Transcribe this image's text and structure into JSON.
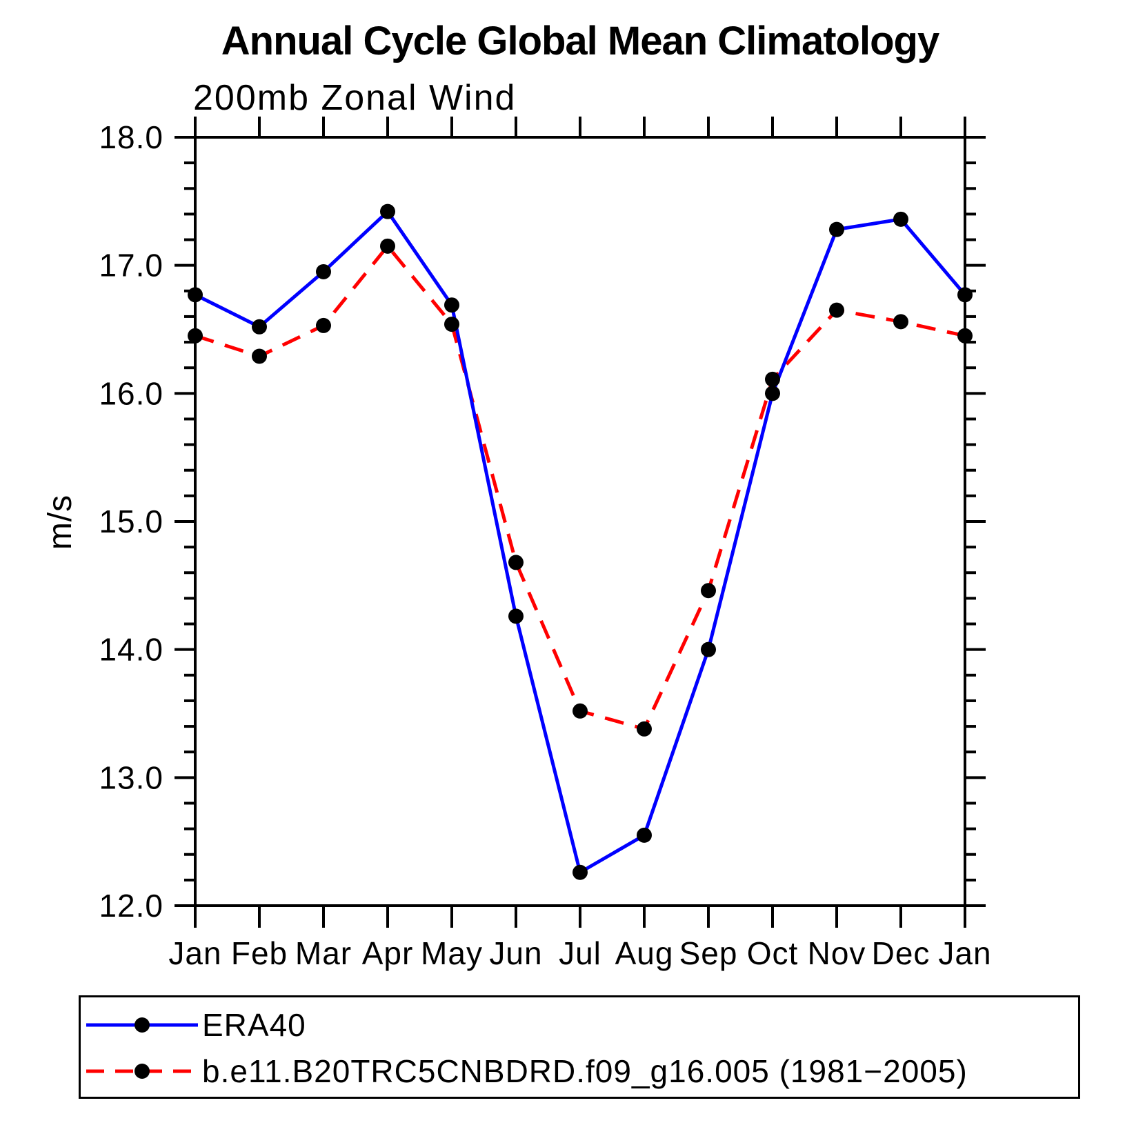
{
  "page": {
    "background_color": "#ffffff",
    "text_color": "#000000"
  },
  "chart_data": {
    "type": "line",
    "title": "Annual Cycle Global Mean Climatology",
    "subtitle": "200mb Zonal Wind",
    "ylabel": "m/s",
    "xlabel": "",
    "categories": [
      "Jan",
      "Feb",
      "Mar",
      "Apr",
      "May",
      "Jun",
      "Jul",
      "Aug",
      "Sep",
      "Oct",
      "Nov",
      "Dec",
      "Jan"
    ],
    "series": [
      {
        "name": "ERA40",
        "color": "#0000ff",
        "line_style": "solid",
        "marker": "filled-circle",
        "marker_color": "#000000",
        "values": [
          16.77,
          16.52,
          16.95,
          17.42,
          16.69,
          14.26,
          12.26,
          12.55,
          14.0,
          16.0,
          17.28,
          17.36,
          16.77
        ]
      },
      {
        "name": "b.e11.B20TRC5CNBDRD.f09_g16.005 (1981−2005)",
        "color": "#ff0000",
        "line_style": "dashed",
        "marker": "filled-circle",
        "marker_color": "#000000",
        "values": [
          16.45,
          16.29,
          16.53,
          17.15,
          16.54,
          14.68,
          13.52,
          13.38,
          14.46,
          16.11,
          16.65,
          16.56,
          16.45
        ]
      }
    ],
    "ylim": [
      12.0,
      18.0
    ],
    "ytick_major_step": 1.0,
    "ytick_minor_step": 0.2,
    "ytick_labels": [
      "18.0",
      "17.0",
      "16.0",
      "15.0",
      "14.0",
      "13.0",
      "12.0"
    ],
    "grid": false,
    "axis_color": "#000000",
    "legend_position": "bottom-left-box"
  }
}
